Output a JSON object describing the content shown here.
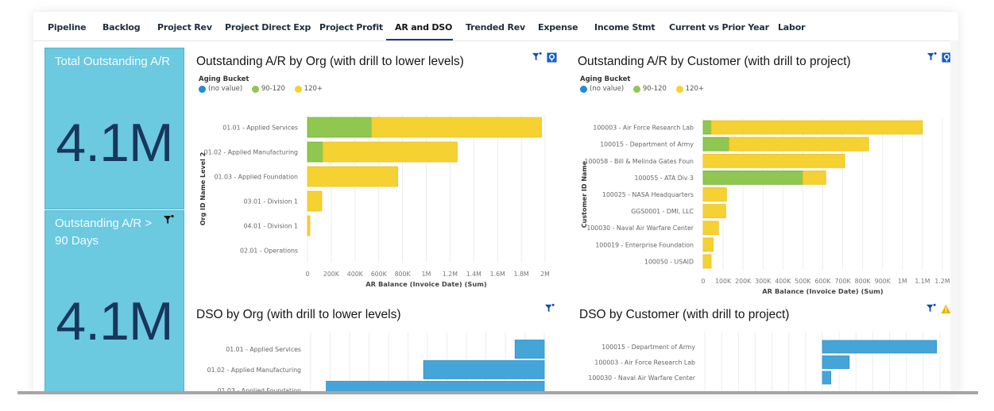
{
  "tabs": [
    {
      "label": "Pipeline",
      "active": false
    },
    {
      "label": "Backlog",
      "active": false
    },
    {
      "label": "Project Rev",
      "active": false
    },
    {
      "label": "Project Direct Exp",
      "active": false
    },
    {
      "label": "Project Profit",
      "active": false
    },
    {
      "label": "AR and DSO",
      "active": true
    },
    {
      "label": "Trended Rev",
      "active": false
    },
    {
      "label": "Expense",
      "active": false
    },
    {
      "label": "Income Stmt",
      "active": false
    },
    {
      "label": "Current vs Prior Year",
      "active": false
    },
    {
      "label": "Labor",
      "active": false
    }
  ],
  "kpis": [
    {
      "title": "Total Outstanding A/R",
      "value": "4.1M",
      "icons": []
    },
    {
      "title": "Outstanding A/R > 90 Days",
      "value": "4.1M",
      "icons": [
        "filter-icon"
      ]
    }
  ],
  "colors": {
    "accent": "#0f3b8c",
    "kpi_bg": "#6bc9e0",
    "kpi_value": "#17375e",
    "no_value": "#1f8dd6",
    "b90_120": "#8fc750",
    "b120": "#f5d132",
    "dso_bar": "#46a5d8",
    "warning": "#e8b500"
  },
  "legend": {
    "title": "Aging Bucket",
    "items": [
      {
        "label": "(no value)",
        "color": "#1f8dd6"
      },
      {
        "label": "90-120",
        "color": "#8fc750"
      },
      {
        "label": "120+",
        "color": "#f5d132"
      }
    ]
  },
  "chart_data": [
    {
      "id": "ar_by_org",
      "type": "bar",
      "orientation": "horizontal",
      "stacked": true,
      "title": "Outstanding A/R by Org (with drill to lower levels)",
      "xlabel": "AR Balance (Invoice Date) (Sum)",
      "ylabel": "Org ID Name Level 2",
      "xlim": [
        0,
        2000000
      ],
      "xticks": [
        "0",
        "200K",
        "400K",
        "600K",
        "800K",
        "1M",
        "1.2M",
        "1.4M",
        "1.6M",
        "1.8M",
        "2M"
      ],
      "grid": true,
      "legend": "top-left",
      "icons": [
        "filter-icon",
        "drill-icon"
      ],
      "categories": [
        "01.01 - Applied Services",
        "01.02 - Applied Manufacturing",
        "01.03 - Applied Foundation",
        "03.01 - Division 1",
        "04.01 - Division 1",
        "02.01 - Operations"
      ],
      "series": [
        {
          "name": "(no value)",
          "values": [
            0,
            0,
            0,
            0,
            0,
            0
          ]
        },
        {
          "name": "90-120",
          "values": [
            540000,
            130000,
            0,
            0,
            0,
            0
          ]
        },
        {
          "name": "120+",
          "values": [
            1430000,
            1130000,
            760000,
            120000,
            20000,
            0
          ]
        }
      ]
    },
    {
      "id": "ar_by_customer",
      "type": "bar",
      "orientation": "horizontal",
      "stacked": true,
      "title": "Outstanding A/R by Customer (with drill to project)",
      "xlabel": "AR Balance (Invoice Date) (Sum)",
      "ylabel": "Customer ID Name",
      "xlim": [
        0,
        1200000
      ],
      "xticks": [
        "0",
        "100K",
        "200K",
        "300K",
        "400K",
        "500K",
        "600K",
        "700K",
        "800K",
        "900K",
        "1M",
        "1.1M",
        "1.2M"
      ],
      "grid": true,
      "legend": "top-left",
      "icons": [
        "filter-icon",
        "drill-icon"
      ],
      "categories": [
        "100003 - Air Force Research Lab",
        "100015 - Department of Army",
        "100058 - Bill & Melinda Gates Foun",
        "100055 - ATA Div 3",
        "100025 - NASA Headquarters",
        "GGS0001 - DMI, LLC",
        "100030 - Naval Air Warfare Center",
        "100019 - Enterprise Foundation",
        "100050 - USAID"
      ],
      "series": [
        {
          "name": "(no value)",
          "values": [
            0,
            0,
            0,
            0,
            0,
            0,
            0,
            0,
            0
          ]
        },
        {
          "name": "90-120",
          "values": [
            40000,
            130000,
            0,
            500000,
            0,
            0,
            0,
            0,
            0
          ]
        },
        {
          "name": "120+",
          "values": [
            1060000,
            700000,
            710000,
            115000,
            117000,
            113000,
            77000,
            50000,
            40000
          ]
        }
      ]
    },
    {
      "id": "dso_by_org",
      "type": "bar",
      "orientation": "horizontal",
      "title": "DSO by Org (with drill to lower levels)",
      "icons": [
        "filter-icon"
      ],
      "grid": true,
      "note": "chart truncated at bottom; axis ticks not visible; values in gridline units",
      "categories": [
        "01.01 - Applied Services",
        "01.02 - Applied Manufacturing",
        "01.03 - Applied Foundation"
      ],
      "xlim": [
        0,
        12
      ],
      "ranges": [
        [
          10.5,
          12
        ],
        [
          5.8,
          12
        ],
        [
          0.8,
          12
        ]
      ]
    },
    {
      "id": "dso_by_customer",
      "type": "bar",
      "orientation": "horizontal",
      "title": "DSO by Customer (with drill to project)",
      "icons": [
        "filter-icon",
        "warning-icon"
      ],
      "grid": true,
      "note": "chart truncated at bottom; axis ticks not visible; values in gridline units",
      "categories": [
        "100015 - Department of Army",
        "100003 - Air Force Research Lab",
        "100030 - Naval Air Warfare Center"
      ],
      "xlim": [
        0,
        14
      ],
      "ranges": [
        [
          7,
          13.8
        ],
        [
          7,
          8.6
        ],
        [
          7,
          7.5
        ]
      ]
    }
  ]
}
